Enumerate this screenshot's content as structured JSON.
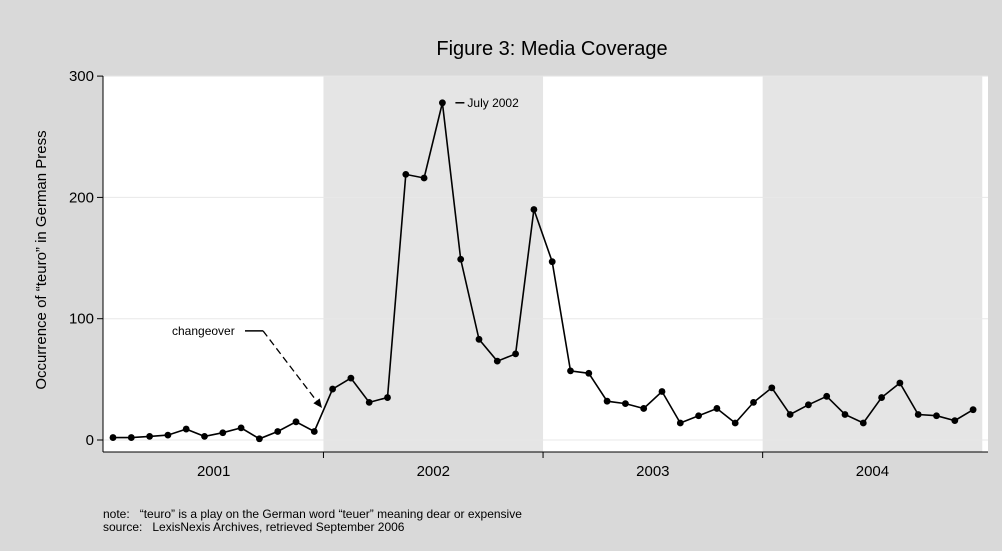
{
  "chart_data": {
    "type": "line",
    "title": "Figure 3: Media Coverage",
    "xlabel": "",
    "ylabel": "Occurrence of “teuro” in German Press",
    "ylim": [
      0,
      300
    ],
    "yticks": [
      0,
      100,
      200,
      300
    ],
    "ytick_labels": [
      "0",
      "100",
      "200",
      "300"
    ],
    "x_period_labels": [
      "2001",
      "2002",
      "2003",
      "2004"
    ],
    "shaded_periods": [
      "2002",
      "2004"
    ],
    "grid": true,
    "monthly_x": [
      "2001-01",
      "2001-02",
      "2001-03",
      "2001-04",
      "2001-05",
      "2001-06",
      "2001-07",
      "2001-08",
      "2001-09",
      "2001-10",
      "2001-11",
      "2001-12",
      "2002-01",
      "2002-02",
      "2002-03",
      "2002-04",
      "2002-05",
      "2002-06",
      "2002-07",
      "2002-08",
      "2002-09",
      "2002-10",
      "2002-11",
      "2002-12",
      "2003-01",
      "2003-02",
      "2003-03",
      "2003-04",
      "2003-05",
      "2003-06",
      "2003-07",
      "2003-08",
      "2003-09",
      "2003-10",
      "2003-11",
      "2003-12",
      "2004-01",
      "2004-02",
      "2004-03",
      "2004-04",
      "2004-05",
      "2004-06",
      "2004-07",
      "2004-08",
      "2004-09",
      "2004-10",
      "2004-11",
      "2004-12"
    ],
    "values": [
      2,
      2,
      3,
      4,
      9,
      3,
      6,
      10,
      1,
      7,
      15,
      7,
      42,
      51,
      31,
      35,
      219,
      216,
      278,
      149,
      83,
      65,
      71,
      190,
      147,
      57,
      55,
      32,
      30,
      26,
      40,
      14,
      20,
      26,
      14,
      31,
      43,
      21,
      29,
      36,
      21,
      14,
      35,
      47,
      21,
      20,
      16,
      25
    ],
    "annotations": [
      {
        "text": "July 2002",
        "x": "2002-07",
        "y": 278
      },
      {
        "text": "changeover",
        "x": "2001-12",
        "y": 90
      }
    ]
  },
  "notes": {
    "note_line": "note:   “teuro” is a play on the German word “teuer” meaning dear or expensive",
    "source_line": "source:   LexisNexis Archives, retrieved September 2006"
  },
  "colors": {
    "background": "#d9d9d9",
    "plot_region": "#ffffff",
    "shaded_band": "#e5e5e5",
    "gridline": "#e8e8e8",
    "line": "#000000"
  }
}
